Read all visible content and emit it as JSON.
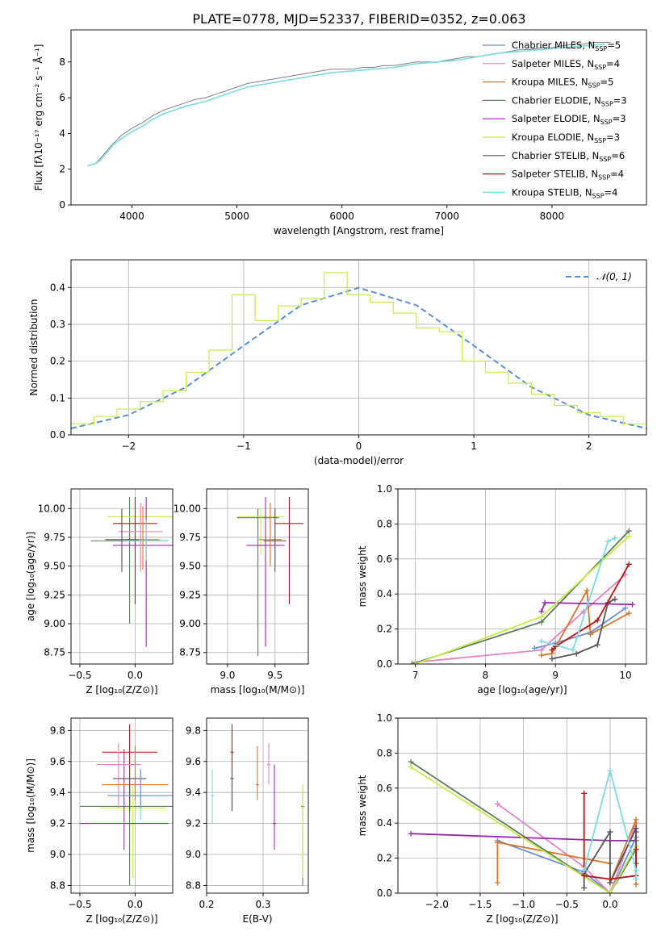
{
  "figure_title": "PLATE=0778, MJD=52337, FIBERID=0352, z=0.063",
  "legend": [
    {
      "label": "Chabrier MILES, N",
      "sub": "SSP",
      "suffix": "=5",
      "color": "#6a8fd4"
    },
    {
      "label": "Salpeter MILES, N",
      "sub": "SSP",
      "suffix": "=4",
      "color": "#e584c4"
    },
    {
      "label": "Kroupa MILES, N",
      "sub": "SSP",
      "suffix": "=5",
      "color": "#d9752b"
    },
    {
      "label": "Chabrier ELODIE, N",
      "sub": "SSP",
      "suffix": "=3",
      "color": "#5d7b5d"
    },
    {
      "label": "Salpeter ELODIE, N",
      "sub": "SSP",
      "suffix": "=3",
      "color": "#9b27b0"
    },
    {
      "label": "Kroupa ELODIE, N",
      "sub": "SSP",
      "suffix": "=3",
      "color": "#c6ec4c"
    },
    {
      "label": "Chabrier STELIB, N",
      "sub": "SSP",
      "suffix": "=6",
      "color": "#555555"
    },
    {
      "label": "Salpeter STELIB, N",
      "sub": "SSP",
      "suffix": "=4",
      "color": "#b81414"
    },
    {
      "label": "Kroupa STELIB, N",
      "sub": "SSP",
      "suffix": "=4",
      "color": "#7ddbe3"
    }
  ],
  "chart_data": [
    {
      "id": "spectrum",
      "type": "line",
      "xlabel": "wavelength [Angstrom, rest frame]",
      "ylabel": "Flux [fλ10⁻¹⁷ erg cm⁻² s⁻¹ Å⁻¹]",
      "xlim": [
        3420,
        8900
      ],
      "ylim": [
        0,
        9.8
      ],
      "xticks": [
        4000,
        5000,
        6000,
        7000,
        8000
      ],
      "yticks": [
        0,
        2,
        4,
        6,
        8
      ],
      "series": [
        {
          "name": "data",
          "color": "#808080",
          "x": [
            3580,
            3650,
            3700,
            3800,
            3850,
            3900,
            3950,
            4000,
            4100,
            4200,
            4300,
            4400,
            4500,
            4600,
            4700,
            4800,
            4900,
            5000,
            5100,
            5200,
            5300,
            5400,
            5500,
            5600,
            5700,
            5800,
            5900,
            6000,
            6100,
            6200,
            6300,
            6400,
            6500,
            6600,
            6700,
            6800,
            6900,
            7000,
            7100,
            7200,
            7300,
            7400,
            7500,
            7600,
            7700,
            7800,
            7900,
            8000,
            8100,
            8200,
            8300,
            8400,
            8500,
            8560
          ],
          "y": [
            2.2,
            2.3,
            2.6,
            3.3,
            3.6,
            3.9,
            4.1,
            4.3,
            4.6,
            5.0,
            5.3,
            5.5,
            5.7,
            5.9,
            6.0,
            6.2,
            6.4,
            6.6,
            6.8,
            6.9,
            7.0,
            7.1,
            7.2,
            7.3,
            7.4,
            7.5,
            7.6,
            7.6,
            7.6,
            7.7,
            7.7,
            7.8,
            7.8,
            7.9,
            8.0,
            8.0,
            8.0,
            8.1,
            8.2,
            8.3,
            8.3,
            8.4,
            8.5,
            8.6,
            8.7,
            8.7,
            8.8,
            8.8,
            8.9,
            9.0,
            9.0,
            9.1,
            9.1,
            9.1
          ]
        },
        {
          "name": "model",
          "color": "#7ddbe3",
          "x": [
            3580,
            3650,
            3700,
            3800,
            3850,
            3900,
            4000,
            4100,
            4200,
            4300,
            4400,
            4500,
            4700,
            4900,
            5100,
            5300,
            5500,
            5700,
            5900,
            6100,
            6300,
            6500,
            6700,
            6900,
            7100,
            7300,
            7500,
            7700,
            7900,
            8100,
            8300,
            8500
          ],
          "y": [
            2.2,
            2.3,
            2.5,
            3.2,
            3.5,
            3.7,
            4.1,
            4.4,
            4.8,
            5.1,
            5.3,
            5.5,
            5.8,
            6.2,
            6.6,
            6.8,
            7.0,
            7.2,
            7.4,
            7.5,
            7.6,
            7.7,
            7.9,
            8.0,
            8.1,
            8.3,
            8.5,
            8.6,
            8.7,
            8.8,
            8.9,
            9.0
          ]
        }
      ]
    },
    {
      "id": "residuals",
      "type": "line",
      "xlabel": "(data-model)/error",
      "ylabel": "Normed distribution",
      "xlim": [
        -2.5,
        2.5
      ],
      "ylim": [
        0,
        0.475
      ],
      "xticks": [
        -2,
        -1,
        0,
        1,
        2
      ],
      "yticks": [
        0.0,
        0.1,
        0.2,
        0.3,
        0.4
      ],
      "legend_label": "𝒩(0, 1)",
      "legend_position": "top-right",
      "series": [
        {
          "name": "𝒩(0, 1)",
          "color": "#5b8fd9",
          "style": "dashed",
          "x": [
            -2.5,
            -2,
            -1.5,
            -1,
            -0.5,
            0,
            0.5,
            1,
            1.5,
            2,
            2.5
          ],
          "y": [
            0.0175,
            0.054,
            0.1295,
            0.242,
            0.352,
            0.399,
            0.352,
            0.242,
            0.1295,
            0.054,
            0.0175
          ]
        },
        {
          "name": "hist",
          "color": "#c6ec4c",
          "style": "step",
          "x": [
            -2.5,
            -2.3,
            -2.1,
            -1.9,
            -1.7,
            -1.5,
            -1.3,
            -1.1,
            -0.9,
            -0.7,
            -0.5,
            -0.3,
            -0.1,
            0.1,
            0.3,
            0.5,
            0.7,
            0.9,
            1.1,
            1.3,
            1.5,
            1.7,
            1.9,
            2.1,
            2.3
          ],
          "y": [
            0.03,
            0.05,
            0.07,
            0.09,
            0.12,
            0.17,
            0.23,
            0.38,
            0.31,
            0.35,
            0.37,
            0.44,
            0.38,
            0.36,
            0.33,
            0.29,
            0.28,
            0.2,
            0.17,
            0.14,
            0.11,
            0.08,
            0.06,
            0.05,
            0.03
          ]
        }
      ]
    },
    {
      "id": "age_vs_Z",
      "type": "scatter",
      "xlabel": "Z [log₁₀(Z/Z⊙)]",
      "ylabel": "age  [log₁₀(age/yr)]",
      "xlim": [
        -0.58,
        0.34
      ],
      "ylim": [
        8.65,
        10.17
      ],
      "xticks": [
        -0.5,
        0.0
      ],
      "yticks": [
        8.75,
        9.0,
        9.25,
        9.5,
        9.75,
        10.0
      ],
      "points": [
        {
          "x": -0.05,
          "y": 9.72,
          "xerr": 0.35,
          "ylo": 9.0,
          "yhi": 10.1,
          "color": "#5d7b5d"
        },
        {
          "x": 0.05,
          "y": 9.93,
          "xerr": 0.3,
          "ylo": 9.5,
          "yhi": 10.02,
          "color": "#c6ec4c"
        },
        {
          "x": 0.1,
          "y": 9.68,
          "xerr": 0.3,
          "ylo": 8.8,
          "yhi": 10.1,
          "color": "#9b27b0"
        },
        {
          "x": 0.0,
          "y": 9.87,
          "xerr": 0.2,
          "ylo": 9.17,
          "yhi": 10.1,
          "color": "#b81414"
        },
        {
          "x": 0.05,
          "y": 9.8,
          "xerr": 0.2,
          "ylo": 9.45,
          "yhi": 10.05,
          "color": "#e584c4"
        },
        {
          "x": 0.07,
          "y": 9.73,
          "xerr": 0.15,
          "ylo": 9.47,
          "yhi": 10.02,
          "color": "#d9752b"
        },
        {
          "x": 0.1,
          "y": 9.72,
          "xerr": 0.2,
          "ylo": 9.55,
          "yhi": 9.9,
          "color": "#7ddbe3"
        },
        {
          "x": -0.12,
          "y": 9.73,
          "xerr": 0.15,
          "ylo": 9.45,
          "yhi": 10.0,
          "color": "#555555"
        }
      ]
    },
    {
      "id": "age_vs_mass",
      "type": "scatter",
      "xlabel": "mass [log₁₀(M/M⊙)]",
      "ylabel": "",
      "xlim": [
        8.78,
        9.85
      ],
      "ylim": [
        8.65,
        10.17
      ],
      "xticks": [
        9.0,
        9.5
      ],
      "yticks": [
        8.75,
        9.0,
        9.25,
        9.5,
        9.75,
        10.0
      ],
      "points": [
        {
          "x": 9.32,
          "y": 9.92,
          "xerr": 0.22,
          "ylo": 8.72,
          "yhi": 10.0,
          "color": "#5d7b5d"
        },
        {
          "x": 9.35,
          "y": 9.93,
          "xerr": 0.25,
          "ylo": 9.6,
          "yhi": 10.0,
          "color": "#c6ec4c"
        },
        {
          "x": 9.4,
          "y": 9.68,
          "xerr": 0.2,
          "ylo": 8.8,
          "yhi": 10.1,
          "color": "#9b27b0"
        },
        {
          "x": 9.65,
          "y": 9.87,
          "xerr": 0.15,
          "ylo": 9.17,
          "yhi": 10.1,
          "color": "#b81414"
        },
        {
          "x": 9.45,
          "y": 9.73,
          "xerr": 0.12,
          "ylo": 9.5,
          "yhi": 10.05,
          "color": "#d9752b"
        },
        {
          "x": 9.5,
          "y": 9.72,
          "xerr": 0.12,
          "ylo": 9.45,
          "yhi": 10.0,
          "color": "#555555"
        }
      ]
    },
    {
      "id": "massweight_vs_age",
      "type": "line",
      "xlabel": "age  [log₁₀(age/yr)]",
      "ylabel": "mass weight",
      "xlim": [
        6.75,
        10.3
      ],
      "ylim": [
        0,
        1.0
      ],
      "xticks": [
        7,
        8,
        9,
        10
      ],
      "yticks": [
        0.0,
        0.2,
        0.4,
        0.6,
        0.8,
        1.0
      ],
      "series": [
        {
          "name": "Chabrier MILES",
          "color": "#6a8fd4",
          "x": [
            8.7,
            9.0,
            9.5,
            10.0
          ],
          "y": [
            0.09,
            0.12,
            0.18,
            0.32
          ]
        },
        {
          "name": "Salpeter MILES",
          "color": "#e584c4",
          "x": [
            7.0,
            8.8,
            9.4,
            10.0
          ],
          "y": [
            0.01,
            0.08,
            0.3,
            0.51
          ]
        },
        {
          "name": "Kroupa MILES",
          "color": "#d9752b",
          "x": [
            8.8,
            8.95,
            9.45,
            9.5,
            10.05
          ],
          "y": [
            0.05,
            0.06,
            0.42,
            0.17,
            0.29
          ]
        },
        {
          "name": "Chabrier ELODIE",
          "color": "#5d7b5d",
          "x": [
            6.95,
            8.8,
            10.05
          ],
          "y": [
            0.0,
            0.24,
            0.76
          ]
        },
        {
          "name": "Salpeter ELODIE",
          "color": "#9b27b0",
          "x": [
            8.8,
            8.85,
            10.1
          ],
          "y": [
            0.3,
            0.35,
            0.34
          ]
        },
        {
          "name": "Kroupa ELODIE",
          "color": "#c6ec4c",
          "x": [
            7.0,
            8.8,
            10.05
          ],
          "y": [
            0.0,
            0.27,
            0.73
          ]
        },
        {
          "name": "Chabrier STELIB",
          "color": "#555555",
          "x": [
            8.95,
            9.3,
            9.6,
            9.75,
            9.85
          ],
          "y": [
            0.03,
            0.06,
            0.11,
            0.35,
            0.37
          ]
        },
        {
          "name": "Salpeter STELIB",
          "color": "#b81414",
          "x": [
            8.95,
            9.0,
            9.6,
            10.05
          ],
          "y": [
            0.08,
            0.1,
            0.25,
            0.57
          ]
        },
        {
          "name": "Kroupa STELIB",
          "color": "#7ddbe3",
          "x": [
            8.8,
            9.25,
            9.75,
            9.85
          ],
          "y": [
            0.13,
            0.08,
            0.7,
            0.72
          ]
        }
      ]
    },
    {
      "id": "mass_vs_Z",
      "type": "scatter",
      "xlabel": "Z [log₁₀(Z/Z⊙)]",
      "ylabel": "mass [log₁₀(M/M⊙)]",
      "xlim": [
        -0.58,
        0.34
      ],
      "ylim": [
        8.75,
        9.88
      ],
      "xticks": [
        -0.5,
        0.0
      ],
      "yticks": [
        8.8,
        9.0,
        9.2,
        9.4,
        9.6,
        9.8
      ],
      "points": [
        {
          "x": -0.05,
          "y": 9.31,
          "xerr": 0.45,
          "ylo": 8.8,
          "yhi": 9.45,
          "color": "#5d7b5d"
        },
        {
          "x": -0.02,
          "y": 9.3,
          "xerr": 0.3,
          "ylo": 8.85,
          "yhi": 9.45,
          "color": "#c6ec4c"
        },
        {
          "x": -0.1,
          "y": 9.2,
          "xerr": 0.4,
          "ylo": 9.03,
          "yhi": 9.68,
          "color": "#9b27b0"
        },
        {
          "x": -0.05,
          "y": 9.66,
          "xerr": 0.25,
          "ylo": 9.3,
          "yhi": 9.84,
          "color": "#b81414"
        },
        {
          "x": -0.15,
          "y": 9.58,
          "xerr": 0.2,
          "ylo": 9.3,
          "yhi": 9.72,
          "color": "#e584c4"
        },
        {
          "x": 0.0,
          "y": 9.45,
          "xerr": 0.3,
          "ylo": 9.35,
          "yhi": 9.7,
          "color": "#d9752b"
        },
        {
          "x": 0.05,
          "y": 9.38,
          "xerr": 0.1,
          "ylo": 9.22,
          "yhi": 9.55,
          "color": "#7ddbe3"
        },
        {
          "x": -0.05,
          "y": 9.49,
          "xerr": 0.15,
          "ylo": 9.28,
          "yhi": 9.55,
          "color": "#555555"
        },
        {
          "x": 0.05,
          "y": 9.38,
          "xerr": 0.3,
          "ylo": 9.3,
          "yhi": 9.55,
          "color": "#6a8fd4"
        }
      ]
    },
    {
      "id": "mass_vs_EBV",
      "type": "scatter",
      "xlabel": "E(B-V)",
      "ylabel": "",
      "xlim": [
        0.2,
        0.38
      ],
      "ylim": [
        8.75,
        9.88
      ],
      "xticks": [
        0.2,
        0.3
      ],
      "yticks": [
        8.8,
        9.0,
        9.2,
        9.4,
        9.6,
        9.8
      ],
      "points": [
        {
          "x": 0.21,
          "y": 9.38,
          "ylo": 9.2,
          "yhi": 9.55,
          "color": "#7ddbe3"
        },
        {
          "x": 0.245,
          "y": 9.66,
          "ylo": 9.28,
          "yhi": 9.84,
          "color": "#b81414"
        },
        {
          "x": 0.245,
          "y": 9.49,
          "ylo": 9.28,
          "yhi": 9.55,
          "color": "#555555"
        },
        {
          "x": 0.29,
          "y": 9.45,
          "ylo": 9.35,
          "yhi": 9.7,
          "color": "#d9752b"
        },
        {
          "x": 0.31,
          "y": 9.58,
          "ylo": 9.45,
          "yhi": 9.72,
          "color": "#e584c4"
        },
        {
          "x": 0.32,
          "y": 9.2,
          "ylo": 9.03,
          "yhi": 9.58,
          "color": "#9b27b0"
        },
        {
          "x": 0.37,
          "y": 9.31,
          "ylo": 8.8,
          "yhi": 9.45,
          "color": "#5d7b5d"
        },
        {
          "x": 0.37,
          "y": 9.3,
          "ylo": 8.85,
          "yhi": 9.45,
          "color": "#c6ec4c"
        }
      ]
    },
    {
      "id": "massweight_vs_Z",
      "type": "line",
      "xlabel": "Z [log₁₀(Z/Z⊙)]",
      "ylabel": "mass weight",
      "xlim": [
        -2.45,
        0.42
      ],
      "ylim": [
        0,
        1.0
      ],
      "xticks": [
        -2.0,
        -1.5,
        -1.0,
        -0.5,
        0.0
      ],
      "yticks": [
        0.0,
        0.2,
        0.4,
        0.6,
        0.8,
        1.0
      ],
      "series": [
        {
          "name": "Chabrier MILES",
          "color": "#6a8fd4",
          "x": [
            -1.3,
            -0.3,
            0.0,
            0.3
          ],
          "y": [
            0.3,
            0.12,
            0.0,
            0.32
          ]
        },
        {
          "name": "Salpeter MILES",
          "color": "#e584c4",
          "x": [
            -1.3,
            -0.3,
            0.0,
            0.3
          ],
          "y": [
            0.51,
            0.15,
            0.0,
            0.4
          ]
        },
        {
          "name": "Kroupa MILES",
          "color": "#d9752b",
          "x": [
            -1.3,
            -1.3,
            0.0,
            0.0,
            0.3,
            0.3
          ],
          "y": [
            0.06,
            0.29,
            0.17,
            0.06,
            0.42,
            0.05
          ]
        },
        {
          "name": "Chabrier ELODIE",
          "color": "#5d7b5d",
          "x": [
            -2.3,
            0.0,
            0.3
          ],
          "y": [
            0.75,
            0.0,
            0.25
          ]
        },
        {
          "name": "Salpeter ELODIE",
          "color": "#9b27b0",
          "x": [
            -2.3,
            0.0,
            0.3,
            0.3
          ],
          "y": [
            0.34,
            0.3,
            0.3,
            0.35
          ]
        },
        {
          "name": "Kroupa ELODIE",
          "color": "#c6ec4c",
          "x": [
            -2.3,
            0.0,
            0.3
          ],
          "y": [
            0.72,
            0.0,
            0.27
          ]
        },
        {
          "name": "Chabrier STELIB",
          "color": "#555555",
          "x": [
            -0.3,
            -0.3,
            0.0,
            0.0,
            0.3,
            0.3
          ],
          "y": [
            0.03,
            0.11,
            0.35,
            0.06,
            0.37,
            0.17
          ]
        },
        {
          "name": "Salpeter STELIB",
          "color": "#b81414",
          "x": [
            -0.3,
            -0.3,
            0.0,
            0.3,
            0.3
          ],
          "y": [
            0.57,
            0.1,
            0.08,
            0.1,
            0.25
          ]
        },
        {
          "name": "Kroupa STELIB",
          "color": "#7ddbe3",
          "x": [
            -0.3,
            0.0,
            0.3,
            0.3
          ],
          "y": [
            0.13,
            0.7,
            0.13,
            0.08
          ]
        }
      ]
    }
  ]
}
